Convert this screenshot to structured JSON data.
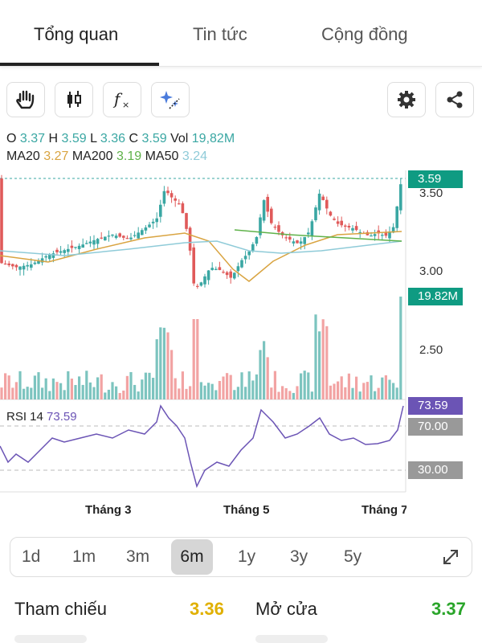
{
  "tabs": [
    {
      "label": "Tổng quan",
      "active": true
    },
    {
      "label": "Tin tức",
      "active": false
    },
    {
      "label": "Cộng đồng",
      "active": false
    }
  ],
  "toolbar": {
    "left": [
      "hand-icon",
      "candlestick-icon",
      "function-icon",
      "sparkle-icon"
    ],
    "right": [
      "gear-icon",
      "share-icon"
    ]
  },
  "ohlc": {
    "o_label": "O",
    "o": "3.37",
    "h_label": "H",
    "h": "3.59",
    "l_label": "L",
    "l": "3.36",
    "c_label": "C",
    "c": "3.59",
    "vol_label": "Vol",
    "vol": "19,82M",
    "ma20_label": "MA20",
    "ma20": "3.27",
    "ma200_label": "MA200",
    "ma200": "3.19",
    "ma50_label": "MA50",
    "ma50": "3.24"
  },
  "price_axis": [
    "3.50",
    "3.00",
    "2.50"
  ],
  "price_tag": "3.59",
  "volume_tag": "19.82M",
  "rsi": {
    "label": "RSI 14",
    "value": "73.59",
    "upper": "70.00",
    "lower": "30.00"
  },
  "months": [
    "Tháng 3",
    "Tháng 5",
    "Tháng 7"
  ],
  "ranges": [
    {
      "label": "1d",
      "active": false
    },
    {
      "label": "1m",
      "active": false
    },
    {
      "label": "3m",
      "active": false
    },
    {
      "label": "6m",
      "active": true
    },
    {
      "label": "1y",
      "active": false
    },
    {
      "label": "3y",
      "active": false
    },
    {
      "label": "5y",
      "active": false
    }
  ],
  "stats": {
    "reference_label": "Tham chiếu",
    "reference": "3.36",
    "open_label": "Mở cửa",
    "open": "3.37"
  },
  "colors": {
    "up": "#3aa7a3",
    "down": "#e05a5a",
    "rsi": "#6b54b5",
    "reference": "#e0b000",
    "open": "#2aa52a"
  }
}
